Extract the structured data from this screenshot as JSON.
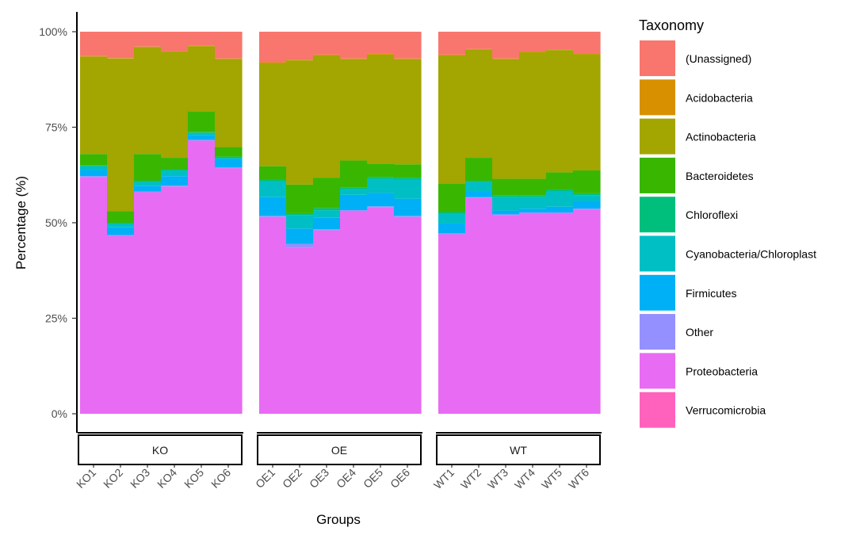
{
  "chart_data": {
    "type": "bar",
    "stacked": true,
    "xlabel": "Groups",
    "ylabel": "Percentage (%)",
    "ylim": [
      0,
      100
    ],
    "y_ticks": [
      "0%",
      "25%",
      "50%",
      "75%",
      "100%"
    ],
    "grid": false,
    "legend_position": "right",
    "legend_title": "Taxonomy",
    "taxa": [
      {
        "name": "(Unassigned)",
        "color": "#F8766D"
      },
      {
        "name": "Acidobacteria",
        "color": "#D89000"
      },
      {
        "name": "Actinobacteria",
        "color": "#A3A500"
      },
      {
        "name": "Bacteroidetes",
        "color": "#39B600"
      },
      {
        "name": "Chloroflexi",
        "color": "#00BF7D"
      },
      {
        "name": "Cyanobacteria/Chloroplast",
        "color": "#00BFC4"
      },
      {
        "name": "Firmicutes",
        "color": "#00B0F6"
      },
      {
        "name": "Other",
        "color": "#9590FF"
      },
      {
        "name": "Proteobacteria",
        "color": "#E76BF3"
      },
      {
        "name": "Verrucomicrobia",
        "color": "#FF62BC"
      }
    ],
    "stack_order_bottom_to_top": [
      "Verrucomicrobia",
      "Proteobacteria",
      "Other",
      "Firmicutes",
      "Cyanobacteria/Chloroplast",
      "Chloroflexi",
      "Bacteroidetes",
      "Actinobacteria",
      "Acidobacteria",
      "(Unassigned)"
    ],
    "facets": [
      {
        "label": "KO",
        "samples": [
          {
            "name": "KO1",
            "values": {
              "Verrucomicrobia": 0,
              "Proteobacteria": 62,
              "Other": 0.2,
              "Firmicutes": 1.6,
              "Cyanobacteria/Chloroplast": 1.0,
              "Chloroflexi": 0.2,
              "Bacteroidetes": 3.0,
              "Actinobacteria": 25.5,
              "Acidobacteria": 0.1,
              "(Unassigned)": 6.4
            }
          },
          {
            "name": "KO2",
            "values": {
              "Verrucomicrobia": 0,
              "Proteobacteria": 46.5,
              "Other": 0.3,
              "Firmicutes": 2.0,
              "Cyanobacteria/Chloroplast": 1.0,
              "Chloroflexi": 0.2,
              "Bacteroidetes": 3.0,
              "Actinobacteria": 40.0,
              "Acidobacteria": 0.1,
              "(Unassigned)": 6.9
            }
          },
          {
            "name": "KO3",
            "values": {
              "Verrucomicrobia": 0,
              "Proteobacteria": 58,
              "Other": 0.2,
              "Firmicutes": 1.5,
              "Cyanobacteria/Chloroplast": 1.0,
              "Chloroflexi": 0.3,
              "Bacteroidetes": 7.0,
              "Actinobacteria": 28.0,
              "Acidobacteria": 0.1,
              "(Unassigned)": 3.9
            }
          },
          {
            "name": "KO4",
            "values": {
              "Verrucomicrobia": 0,
              "Proteobacteria": 59.5,
              "Other": 0.2,
              "Firmicutes": 2.5,
              "Cyanobacteria/Chloroplast": 1.5,
              "Chloroflexi": 0.3,
              "Bacteroidetes": 3.0,
              "Actinobacteria": 27.8,
              "Acidobacteria": 0.1,
              "(Unassigned)": 5.1
            }
          },
          {
            "name": "KO5",
            "values": {
              "Verrucomicrobia": 0,
              "Proteobacteria": 71.5,
              "Other": 0.2,
              "Firmicutes": 1.3,
              "Cyanobacteria/Chloroplast": 0.5,
              "Chloroflexi": 0.2,
              "Bacteroidetes": 5.5,
              "Actinobacteria": 17.0,
              "Acidobacteria": 0.1,
              "(Unassigned)": 3.7
            }
          },
          {
            "name": "KO6",
            "values": {
              "Verrucomicrobia": 0,
              "Proteobacteria": 64.3,
              "Other": 0.2,
              "Firmicutes": 2.0,
              "Cyanobacteria/Chloroplast": 0.5,
              "Chloroflexi": 0.3,
              "Bacteroidetes": 2.5,
              "Actinobacteria": 23.1,
              "Acidobacteria": 0.1,
              "(Unassigned)": 7.0
            }
          }
        ]
      },
      {
        "label": "OE",
        "samples": [
          {
            "name": "OE1",
            "values": {
              "Verrucomicrobia": 0,
              "Proteobacteria": 51.5,
              "Other": 0.3,
              "Firmicutes": 5.0,
              "Cyanobacteria/Chloroplast": 4.0,
              "Chloroflexi": 0.5,
              "Bacteroidetes": 3.5,
              "Actinobacteria": 27.0,
              "Acidobacteria": 0.2,
              "(Unassigned)": 8.0
            }
          },
          {
            "name": "OE2",
            "values": {
              "Verrucomicrobia": 0,
              "Proteobacteria": 43.5,
              "Other": 1.0,
              "Firmicutes": 4.0,
              "Cyanobacteria/Chloroplast": 3.5,
              "Chloroflexi": 0.5,
              "Bacteroidetes": 7.5,
              "Actinobacteria": 32.5,
              "Acidobacteria": 0.2,
              "(Unassigned)": 7.3
            }
          },
          {
            "name": "OE3",
            "values": {
              "Verrucomicrobia": 0,
              "Proteobacteria": 48,
              "Other": 0.3,
              "Firmicutes": 3.0,
              "Cyanobacteria/Chloroplast": 2.0,
              "Chloroflexi": 0.5,
              "Bacteroidetes": 8.0,
              "Actinobacteria": 32.0,
              "Acidobacteria": 0.2,
              "(Unassigned)": 6.0
            }
          },
          {
            "name": "OE4",
            "values": {
              "Verrucomicrobia": 0,
              "Proteobacteria": 53,
              "Other": 0.3,
              "Firmicutes": 4.0,
              "Cyanobacteria/Chloroplast": 1.5,
              "Chloroflexi": 0.5,
              "Bacteroidetes": 7.0,
              "Actinobacteria": 26.5,
              "Acidobacteria": 0.2,
              "(Unassigned)": 7.0
            }
          },
          {
            "name": "OE5",
            "values": {
              "Verrucomicrobia": 0,
              "Proteobacteria": 54,
              "Other": 0.3,
              "Firmicutes": 3.5,
              "Cyanobacteria/Chloroplast": 3.7,
              "Chloroflexi": 0.5,
              "Bacteroidetes": 3.5,
              "Actinobacteria": 28.5,
              "Acidobacteria": 0.2,
              "(Unassigned)": 5.8
            }
          },
          {
            "name": "OE6",
            "values": {
              "Verrucomicrobia": 0,
              "Proteobacteria": 51.5,
              "Other": 0.3,
              "Firmicutes": 4.5,
              "Cyanobacteria/Chloroplast": 5.0,
              "Chloroflexi": 0.5,
              "Bacteroidetes": 3.5,
              "Actinobacteria": 27.5,
              "Acidobacteria": 0.2,
              "(Unassigned)": 7.0
            }
          }
        ]
      },
      {
        "label": "WT",
        "samples": [
          {
            "name": "WT1",
            "values": {
              "Verrucomicrobia": 0,
              "Proteobacteria": 47,
              "Other": 0.3,
              "Firmicutes": 2.5,
              "Cyanobacteria/Chloroplast": 2.5,
              "Chloroflexi": 0.5,
              "Bacteroidetes": 7.5,
              "Actinobacteria": 33.5,
              "Acidobacteria": 0.2,
              "(Unassigned)": 6.0
            }
          },
          {
            "name": "WT2",
            "values": {
              "Verrucomicrobia": 0,
              "Proteobacteria": 56.5,
              "Other": 0.2,
              "Firmicutes": 1.5,
              "Cyanobacteria/Chloroplast": 2.5,
              "Chloroflexi": 0.3,
              "Bacteroidetes": 6.0,
              "Actinobacteria": 28.3,
              "Acidobacteria": 0.2,
              "(Unassigned)": 4.5
            }
          },
          {
            "name": "WT3",
            "values": {
              "Verrucomicrobia": 0,
              "Proteobacteria": 52,
              "Other": 0.2,
              "Firmicutes": 1.0,
              "Cyanobacteria/Chloroplast": 3.5,
              "Chloroflexi": 0.5,
              "Bacteroidetes": 4.3,
              "Actinobacteria": 31.3,
              "Acidobacteria": 0.2,
              "(Unassigned)": 7.0
            }
          },
          {
            "name": "WT4",
            "values": {
              "Verrucomicrobia": 0,
              "Proteobacteria": 52.5,
              "Other": 0.2,
              "Firmicutes": 1.0,
              "Cyanobacteria/Chloroplast": 3.0,
              "Chloroflexi": 0.5,
              "Bacteroidetes": 4.3,
              "Actinobacteria": 33.1,
              "Acidobacteria": 0.2,
              "(Unassigned)": 5.2
            }
          },
          {
            "name": "WT5",
            "values": {
              "Verrucomicrobia": 0,
              "Proteobacteria": 52.5,
              "Other": 0.2,
              "Firmicutes": 1.5,
              "Cyanobacteria/Chloroplast": 4.0,
              "Chloroflexi": 0.5,
              "Bacteroidetes": 4.5,
              "Actinobacteria": 32.0,
              "Acidobacteria": 0.2,
              "(Unassigned)": 4.6
            }
          },
          {
            "name": "WT6",
            "values": {
              "Verrucomicrobia": 0,
              "Proteobacteria": 53.5,
              "Other": 0.2,
              "Firmicutes": 2.0,
              "Cyanobacteria/Chloroplast": 1.5,
              "Chloroflexi": 0.5,
              "Bacteroidetes": 6.0,
              "Actinobacteria": 30.4,
              "Acidobacteria": 0.2,
              "(Unassigned)": 5.7
            }
          }
        ]
      }
    ]
  }
}
